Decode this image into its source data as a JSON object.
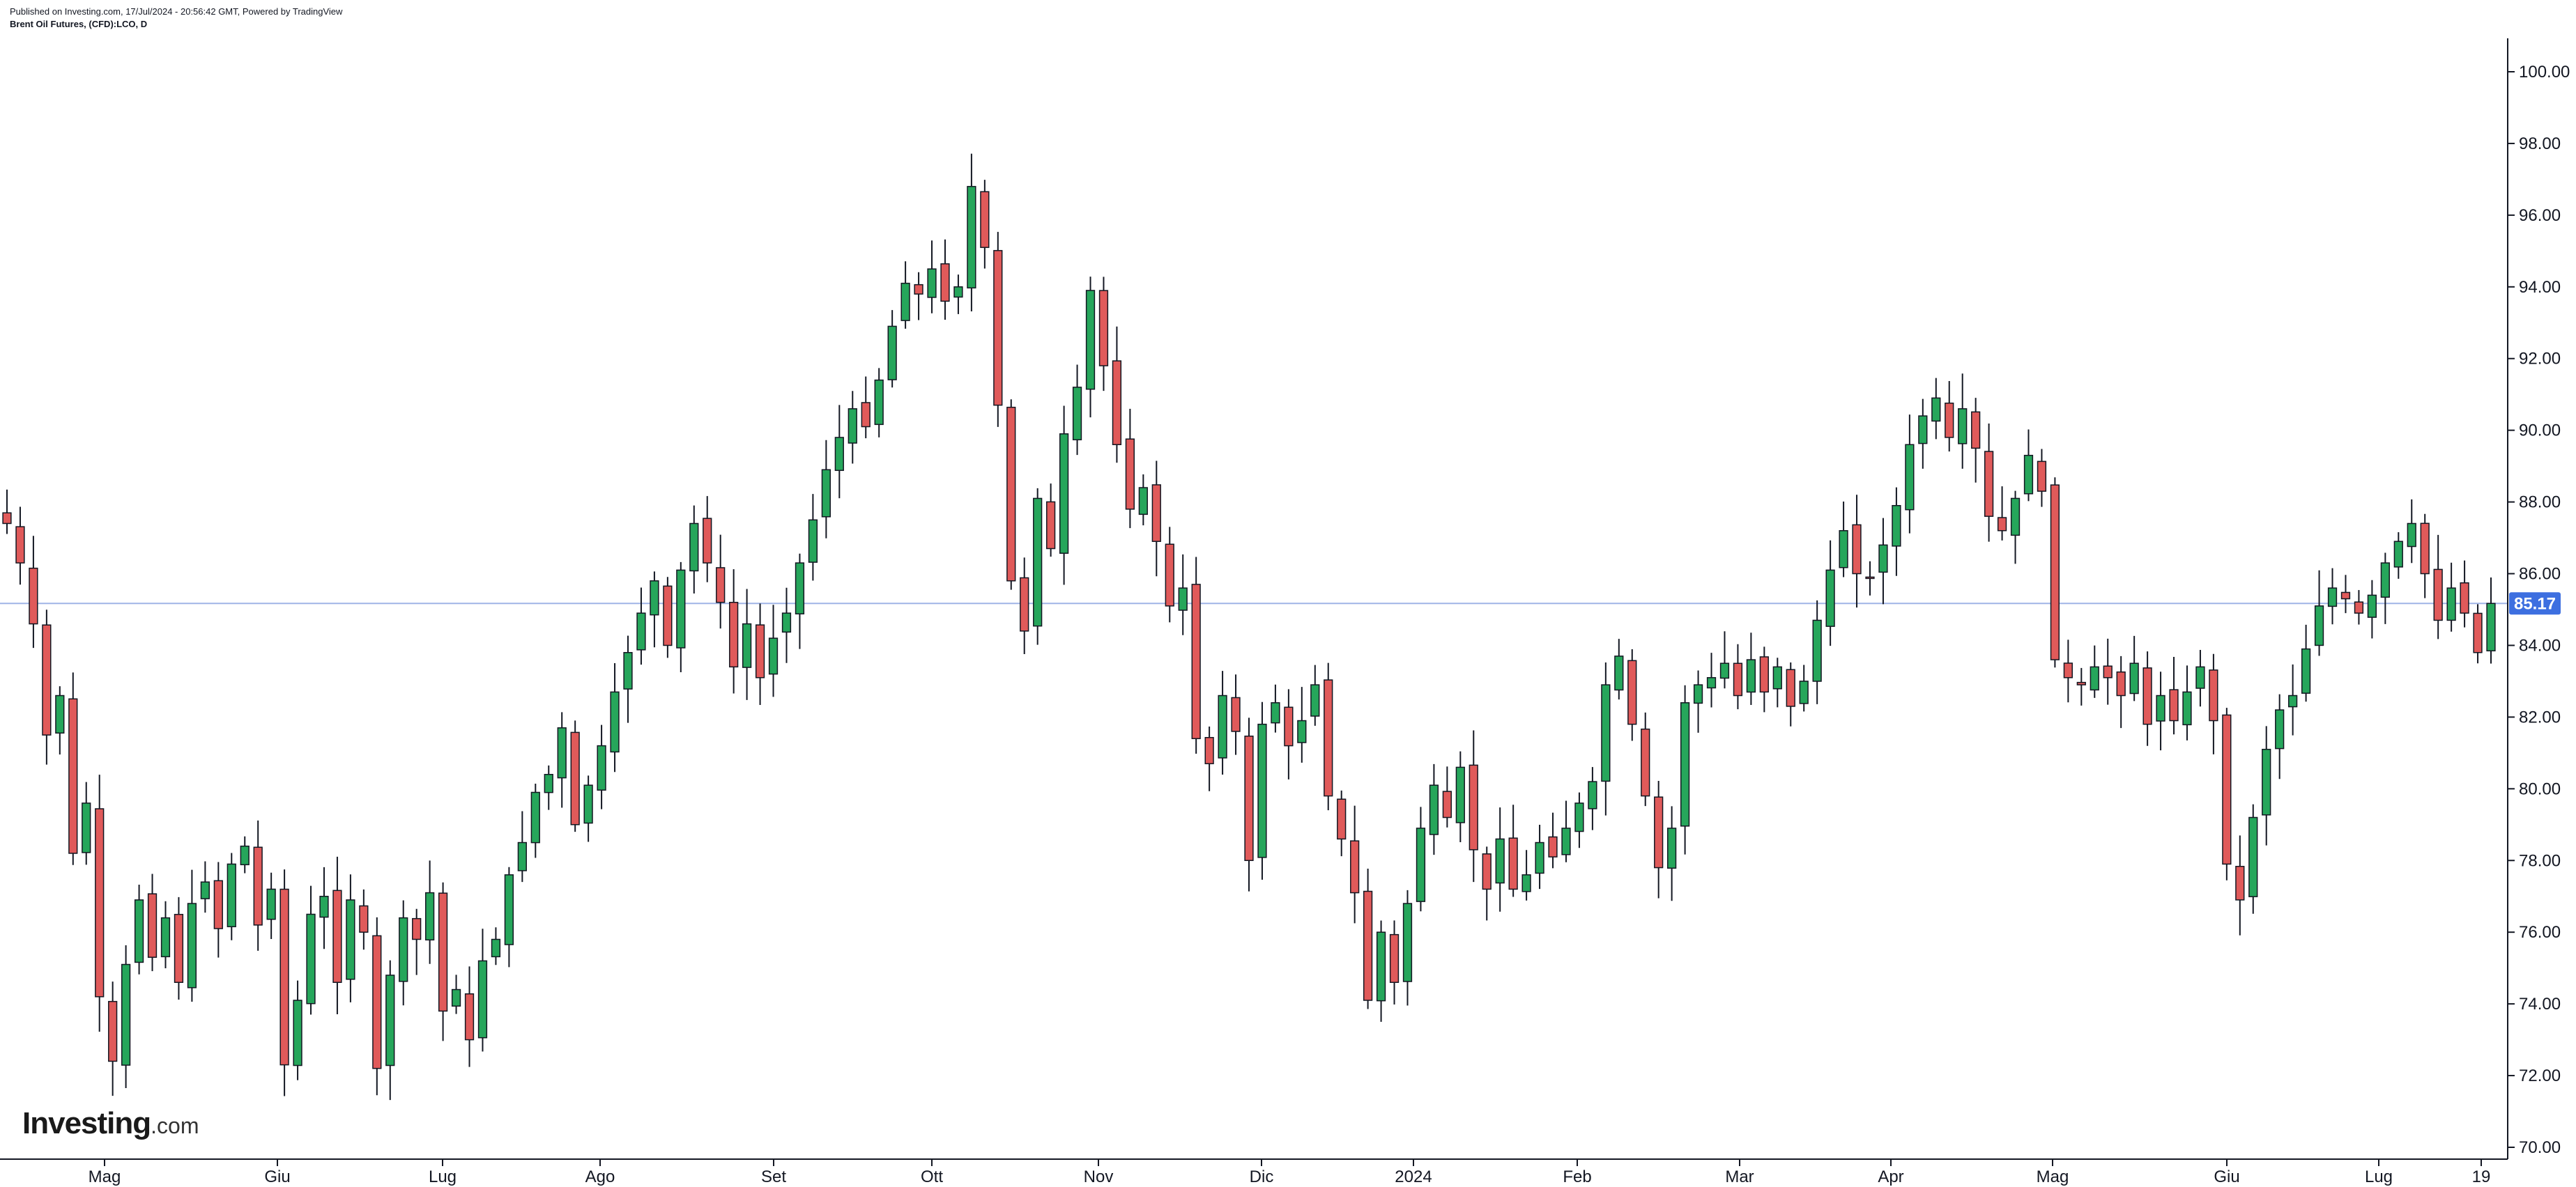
{
  "header": {
    "published": "Published on Investing.com, 17/Jul/2024 - 20:56:42 GMT, Powered by TradingView",
    "symbol": "Brent Oil Futures, (CFD):LCO, D"
  },
  "logo": {
    "name": "Investing",
    "suffix": ".com"
  },
  "colors": {
    "up": "#26a65b",
    "down": "#e05a5a",
    "wick": "#131722",
    "last_price_line": "#9fb4e6",
    "last_price_badge": "#3d6fe0",
    "axis": "#131722"
  },
  "chart_data": {
    "type": "candlestick",
    "title": "Brent Oil Futures, (CFD):LCO, D",
    "ylim": [
      70,
      100
    ],
    "y_ticks": [
      {
        "value": 70,
        "label": "70.00"
      },
      {
        "value": 72,
        "label": "72.00"
      },
      {
        "value": 74,
        "label": "74.00"
      },
      {
        "value": 76,
        "label": "76.00"
      },
      {
        "value": 78,
        "label": "78.00"
      },
      {
        "value": 80,
        "label": "80.00"
      },
      {
        "value": 82,
        "label": "82.00"
      },
      {
        "value": 84,
        "label": "84.00"
      },
      {
        "value": 86,
        "label": "86.00"
      },
      {
        "value": 88,
        "label": "88.00"
      },
      {
        "value": 90,
        "label": "90.00"
      },
      {
        "value": 92,
        "label": "92.00"
      },
      {
        "value": 94,
        "label": "94.00"
      },
      {
        "value": 96,
        "label": "96.00"
      },
      {
        "value": 98,
        "label": "98.00"
      },
      {
        "value": 100,
        "label": "100.00"
      }
    ],
    "x_ticks": [
      "Mag",
      "Giu",
      "Lug",
      "Ago",
      "Set",
      "Ott",
      "Nov",
      "Dic",
      "2024",
      "Feb",
      "Mar",
      "Apr",
      "Mag",
      "Giu",
      "Lug",
      "19"
    ],
    "last_price": 85.17,
    "grid": false,
    "series": [
      {
        "description": "Daily closing price path (approx., first to last candle)",
        "closes": [
          87.4,
          86.3,
          84.6,
          81.5,
          82.6,
          78.2,
          79.6,
          74.2,
          72.4,
          75.1,
          76.9,
          75.3,
          76.4,
          74.6,
          76.8,
          77.4,
          76.1,
          77.9,
          78.4,
          76.2,
          77.2,
          72.3,
          74.1,
          76.5,
          77.0,
          74.6,
          76.9,
          76.0,
          72.2,
          74.8,
          76.4,
          75.8,
          77.1,
          73.8,
          74.4,
          73.0,
          75.2,
          75.8,
          77.6,
          78.5,
          79.9,
          80.4,
          81.7,
          79.0,
          80.1,
          81.2,
          82.7,
          83.8,
          84.9,
          85.8,
          84.0,
          86.1,
          87.4,
          86.3,
          85.2,
          83.4,
          84.6,
          83.1,
          84.2,
          84.9,
          86.3,
          87.5,
          88.9,
          89.8,
          90.6,
          90.1,
          91.4,
          92.9,
          94.1,
          93.8,
          94.5,
          93.6,
          94.0,
          96.8,
          95.1,
          90.7,
          85.8,
          84.4,
          88.1,
          86.7,
          89.9,
          91.2,
          93.9,
          91.8,
          89.6,
          87.8,
          88.4,
          86.9,
          85.1,
          85.6,
          81.4,
          80.7,
          82.6,
          81.6,
          78.0,
          81.8,
          82.4,
          81.2,
          81.9,
          82.9,
          79.8,
          78.6,
          77.1,
          74.1,
          76.0,
          74.6,
          76.8,
          78.9,
          80.1,
          79.2,
          80.6,
          78.3,
          77.2,
          78.6,
          77.2,
          77.6,
          78.5,
          78.1,
          78.9,
          79.6,
          80.2,
          82.9,
          83.7,
          81.8,
          79.8,
          77.8,
          78.9,
          82.4,
          82.9,
          83.1,
          83.5,
          82.6,
          83.6,
          82.7,
          83.4,
          82.3,
          83.0,
          84.7,
          86.1,
          87.2,
          86.0,
          85.9,
          86.8,
          87.9,
          89.6,
          90.4,
          90.9,
          89.8,
          90.6,
          89.5,
          87.6,
          87.2,
          88.1,
          89.3,
          88.3,
          83.6,
          83.1,
          82.9,
          83.4,
          83.1,
          82.6,
          83.5,
          81.8,
          82.6,
          81.9,
          82.7,
          83.4,
          81.9,
          77.9,
          76.9,
          79.2,
          81.1,
          82.2,
          82.6,
          83.9,
          85.1,
          85.6,
          85.3,
          84.9,
          85.4,
          86.3,
          86.9,
          87.4,
          86.0,
          84.7,
          85.6,
          84.9,
          83.8,
          85.17
        ]
      }
    ]
  }
}
